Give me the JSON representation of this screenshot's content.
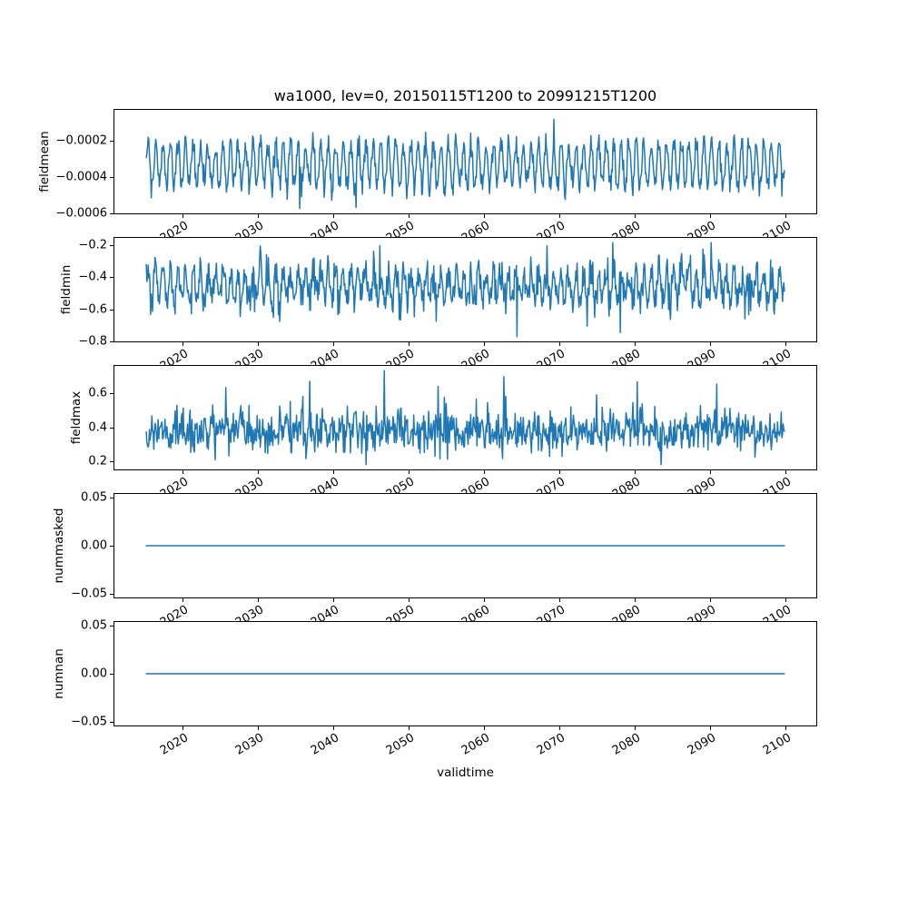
{
  "figure": {
    "title": "wa1000, lev=0, 20150115T1200 to 20991215T1200",
    "xlabel": "validtime",
    "background_color": "#ffffff",
    "text_color": "#000000",
    "line_color": "#1f77b4",
    "layout": "5 vertically stacked line subplots sharing the validtime x-axis, grid off, no legend"
  },
  "chart_data": [
    {
      "type": "line",
      "ylabel": "fieldmean",
      "x_start": 2015.0417,
      "x_end": 2099.9583,
      "samples_per_year": 12,
      "xlim": [
        2010.8,
        2104.2
      ],
      "ylim": [
        -0.000605,
        -2.5e-05
      ],
      "xticks": [
        2020,
        2030,
        2040,
        2050,
        2060,
        2070,
        2080,
        2090,
        2100
      ],
      "xtick_labels": [
        "2020",
        "2030",
        "2040",
        "2050",
        "2060",
        "2070",
        "2080",
        "2090",
        "2100"
      ],
      "yticks": [
        -0.0002,
        -0.0004,
        -0.0006
      ],
      "ytick_labels": [
        "−0.0002",
        "−0.0004",
        "−0.0006"
      ],
      "grid": false,
      "series": {
        "name": "fieldmean",
        "color": "#1f77b4",
        "pattern": "annual seasonal cycle with noise, monthly samples",
        "constant": null,
        "mean": -0.00033,
        "seasonal_amplitude": 0.00012,
        "phase": 0,
        "noise_sd": 3.5e-05,
        "spike_prob": 0,
        "spike_min": 0,
        "spike_max": 0,
        "spike_sign": 1,
        "clamp": [
          -0.000578,
          -5.25e-05
        ],
        "approx_min": -0.000578,
        "approx_max": -7.5e-05,
        "forced_points": [
          [
            2069.3,
            -7.8e-05
          ],
          [
            2035.5,
            -0.000578
          ],
          [
            2043.0,
            -0.000572
          ]
        ],
        "seed": 101
      }
    },
    {
      "type": "line",
      "ylabel": "fieldmin",
      "x_start": 2015.0417,
      "x_end": 2099.9583,
      "samples_per_year": 12,
      "xlim": [
        2010.8,
        2104.2
      ],
      "ylim": [
        -0.806,
        -0.149
      ],
      "xticks": [
        2020,
        2030,
        2040,
        2050,
        2060,
        2070,
        2080,
        2090,
        2100
      ],
      "xtick_labels": [
        "2020",
        "2030",
        "2040",
        "2050",
        "2060",
        "2070",
        "2080",
        "2090",
        "2100"
      ],
      "yticks": [
        -0.2,
        -0.4,
        -0.6,
        -0.8
      ],
      "ytick_labels": [
        "−0.2",
        "−0.4",
        "−0.6",
        "−0.8"
      ],
      "grid": false,
      "series": {
        "name": "fieldmin",
        "color": "#1f77b4",
        "pattern": "annual cycle with noise and occasional deep negative spikes",
        "constant": null,
        "mean": -0.45,
        "seasonal_amplitude": 0.095,
        "phase": 0,
        "noise_sd": 0.055,
        "spike_prob": 0.03,
        "spike_min": 0.05,
        "spike_max": 0.2,
        "spike_sign": -1,
        "clamp": [
          -0.776,
          -0.179
        ],
        "approx_min": -0.776,
        "approx_max": -0.179,
        "forced_points": [
          [
            2064.4,
            -0.776
          ],
          [
            2077.1,
            -0.179
          ],
          [
            2078.1,
            -0.75
          ],
          [
            2030.2,
            -0.2
          ]
        ],
        "seed": 202
      }
    },
    {
      "type": "line",
      "ylabel": "fieldmax",
      "x_start": 2015.0417,
      "x_end": 2099.9583,
      "samples_per_year": 12,
      "xlim": [
        2010.8,
        2104.2
      ],
      "ylim": [
        0.147,
        0.765
      ],
      "xticks": [
        2020,
        2030,
        2040,
        2050,
        2060,
        2070,
        2080,
        2090,
        2100
      ],
      "xtick_labels": [
        "2020",
        "2030",
        "2040",
        "2050",
        "2060",
        "2070",
        "2080",
        "2090",
        "2100"
      ],
      "yticks": [
        0.2,
        0.4,
        0.6
      ],
      "ytick_labels": [
        "0.2",
        "0.4",
        "0.6"
      ],
      "grid": false,
      "series": {
        "name": "fieldmax",
        "color": "#1f77b4",
        "pattern": "noisy series around 0.37 with occasional tall positive spikes",
        "constant": null,
        "mean": 0.372,
        "seasonal_amplitude": 0.03,
        "phase": 0.5,
        "noise_sd": 0.058,
        "spike_prob": 0.03,
        "spike_min": 0.06,
        "spike_max": 0.2,
        "spike_sign": 1,
        "clamp": [
          0.175,
          0.737
        ],
        "approx_min": 0.175,
        "approx_max": 0.737,
        "forced_points": [
          [
            2046.7,
            0.737
          ],
          [
            2062.6,
            0.7
          ],
          [
            2044.3,
            0.175
          ],
          [
            2080.4,
            0.67
          ]
        ],
        "seed": 303
      }
    },
    {
      "type": "line",
      "ylabel": "nummasked",
      "x_start": 2015.0417,
      "x_end": 2099.9583,
      "samples_per_year": 12,
      "xlim": [
        2010.8,
        2104.2
      ],
      "ylim": [
        -0.055,
        0.055
      ],
      "xticks": [
        2020,
        2030,
        2040,
        2050,
        2060,
        2070,
        2080,
        2090,
        2100
      ],
      "xtick_labels": [
        "2020",
        "2030",
        "2040",
        "2050",
        "2060",
        "2070",
        "2080",
        "2090",
        "2100"
      ],
      "yticks": [
        0.05,
        0.0,
        -0.05
      ],
      "ytick_labels": [
        "0.05",
        "0.00",
        "−0.05"
      ],
      "grid": false,
      "series": {
        "name": "nummasked",
        "color": "#1f77b4",
        "pattern": "constant zero line",
        "constant": 0,
        "clamp": [
          0,
          0
        ],
        "approx_min": 0,
        "approx_max": 0,
        "forced_points": [],
        "seed": 404
      }
    },
    {
      "type": "line",
      "ylabel": "numnan",
      "x_start": 2015.0417,
      "x_end": 2099.9583,
      "samples_per_year": 12,
      "xlim": [
        2010.8,
        2104.2
      ],
      "ylim": [
        -0.055,
        0.055
      ],
      "xticks": [
        2020,
        2030,
        2040,
        2050,
        2060,
        2070,
        2080,
        2090,
        2100
      ],
      "xtick_labels": [
        "2020",
        "2030",
        "2040",
        "2050",
        "2060",
        "2070",
        "2080",
        "2090",
        "2100"
      ],
      "yticks": [
        0.05,
        0.0,
        -0.05
      ],
      "ytick_labels": [
        "0.05",
        "0.00",
        "−0.05"
      ],
      "grid": false,
      "series": {
        "name": "numnan",
        "color": "#1f77b4",
        "pattern": "constant zero line",
        "constant": 0,
        "clamp": [
          0,
          0
        ],
        "approx_min": 0,
        "approx_max": 0,
        "forced_points": [],
        "seed": 505
      }
    }
  ]
}
